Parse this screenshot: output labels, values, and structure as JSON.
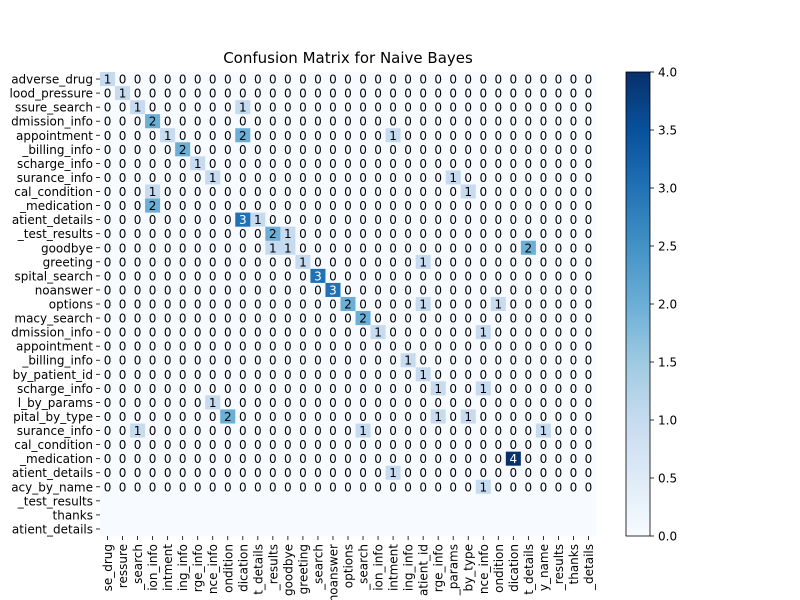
{
  "chart_data": {
    "type": "heatmap",
    "title": "Confusion Matrix for Naive Bayes",
    "xlabel": "",
    "ylabel": "",
    "y_labels": [
      "adverse_drug",
      "blood_pressure",
      "blood_pressure_search",
      "hospital_admission_info",
      "hospital_appointment",
      "hospital_billing_info",
      "hospital_discharge_info",
      "hospital_insurance_info",
      "medical_condition",
      "medication_medication",
      "patient_details",
      "lab_test_results",
      "goodbye",
      "greeting",
      "hospital_search",
      "noanswer",
      "options",
      "pharmacy_search",
      "admission_info",
      "appointment",
      "billing_info",
      "hospital_by_patient_id",
      "discharge_info",
      "hospital_by_params",
      "hospital_by_type",
      "insurance_info",
      "medical_condition",
      "medication_medication",
      "patient_details",
      "pharmacy_by_name",
      "lab_test_results",
      "thanks",
      "patient_details"
    ],
    "x_labels": [
      "adverse_drug",
      "blood_pressure",
      "blood_pressure_search",
      "admission_info",
      "appointment",
      "billing_info",
      "discharge_info",
      "insurance_info",
      "medical_condition",
      "medication",
      "patient_details",
      "lab_test_results",
      "goodbye",
      "greeting",
      "hospital_search",
      "noanswer",
      "options",
      "pharmacy_search",
      "admission_info",
      "appointment",
      "billing_info",
      "patient_id",
      "discharge_info",
      "by_params",
      "by_type",
      "insurance_info",
      "condition",
      "medication",
      "patient_details",
      "pharmacy_by_name",
      "test_results",
      "thanks",
      "patient_details"
    ],
    "y_label_display": [
      "adverse_drug",
      "lood_pressure",
      "ssure_search",
      "dmission_info",
      "appointment",
      "_billing_info",
      "scharge_info",
      "surance_info",
      "cal_condition",
      "_medication",
      "atient_details",
      "_test_results",
      "goodbye",
      "greeting",
      "spital_search",
      "noanswer",
      "options",
      "macy_search",
      "dmission_info",
      "appointment",
      "_billing_info",
      "by_patient_id",
      "scharge_info",
      "l_by_params",
      "pital_by_type",
      "surance_info",
      "cal_condition",
      "_medication",
      "atient_details",
      "acy_by_name",
      "_test_results",
      "thanks",
      "atient_details"
    ],
    "x_label_display": [
      "se_drug",
      "ressure",
      "_search",
      "ion_info",
      "intment",
      "ing_info",
      "rge_info",
      "nce_info",
      "ondition",
      "dication",
      "t_details",
      "_results",
      "goodbye",
      "greeting",
      "_search",
      "noanswer",
      "options",
      "_search",
      "ion_info",
      "intment",
      "ing_info",
      "atient_id",
      "rge_info",
      "_params",
      "by_type",
      "nce_info",
      "ondition",
      "dication",
      "t_details",
      "y_name",
      "_results",
      "thanks",
      "_details"
    ],
    "annotated_rows": 30,
    "matrix": [
      [
        1,
        0,
        0,
        0,
        0,
        0,
        0,
        0,
        0,
        0,
        0,
        0,
        0,
        0,
        0,
        0,
        0,
        0,
        0,
        0,
        0,
        0,
        0,
        0,
        0,
        0,
        0,
        0,
        0,
        0,
        0,
        0,
        0
      ],
      [
        0,
        1,
        0,
        0,
        0,
        0,
        0,
        0,
        0,
        0,
        0,
        0,
        0,
        0,
        0,
        0,
        0,
        0,
        0,
        0,
        0,
        0,
        0,
        0,
        0,
        0,
        0,
        0,
        0,
        0,
        0,
        0,
        0
      ],
      [
        0,
        0,
        1,
        0,
        0,
        0,
        0,
        0,
        0,
        1,
        0,
        0,
        0,
        0,
        0,
        0,
        0,
        0,
        0,
        0,
        0,
        0,
        0,
        0,
        0,
        0,
        0,
        0,
        0,
        0,
        0,
        0,
        0
      ],
      [
        0,
        0,
        0,
        2,
        0,
        0,
        0,
        0,
        0,
        0,
        0,
        0,
        0,
        0,
        0,
        0,
        0,
        0,
        0,
        0,
        0,
        0,
        0,
        0,
        0,
        0,
        0,
        0,
        0,
        0,
        0,
        0,
        0
      ],
      [
        0,
        0,
        0,
        0,
        1,
        0,
        0,
        0,
        0,
        2,
        0,
        0,
        0,
        0,
        0,
        0,
        0,
        0,
        0,
        1,
        0,
        0,
        0,
        0,
        0,
        0,
        0,
        0,
        0,
        0,
        0,
        0,
        0
      ],
      [
        0,
        0,
        0,
        0,
        0,
        2,
        0,
        0,
        0,
        0,
        0,
        0,
        0,
        0,
        0,
        0,
        0,
        0,
        0,
        0,
        0,
        0,
        0,
        0,
        0,
        0,
        0,
        0,
        0,
        0,
        0,
        0,
        0
      ],
      [
        0,
        0,
        0,
        0,
        0,
        0,
        1,
        0,
        0,
        0,
        0,
        0,
        0,
        0,
        0,
        0,
        0,
        0,
        0,
        0,
        0,
        0,
        0,
        0,
        0,
        0,
        0,
        0,
        0,
        0,
        0,
        0,
        0
      ],
      [
        0,
        0,
        0,
        0,
        0,
        0,
        0,
        1,
        0,
        0,
        0,
        0,
        0,
        0,
        0,
        0,
        0,
        0,
        0,
        0,
        0,
        0,
        0,
        1,
        0,
        0,
        0,
        0,
        0,
        0,
        0,
        0,
        0
      ],
      [
        0,
        0,
        0,
        1,
        0,
        0,
        0,
        0,
        0,
        0,
        0,
        0,
        0,
        0,
        0,
        0,
        0,
        0,
        0,
        0,
        0,
        0,
        0,
        0,
        1,
        0,
        0,
        0,
        0,
        0,
        0,
        0,
        0
      ],
      [
        0,
        0,
        0,
        2,
        0,
        0,
        0,
        0,
        0,
        0,
        0,
        0,
        0,
        0,
        0,
        0,
        0,
        0,
        0,
        0,
        0,
        0,
        0,
        0,
        0,
        0,
        0,
        0,
        0,
        0,
        0,
        0,
        0
      ],
      [
        0,
        0,
        0,
        0,
        0,
        0,
        0,
        0,
        0,
        3,
        1,
        0,
        0,
        0,
        0,
        0,
        0,
        0,
        0,
        0,
        0,
        0,
        0,
        0,
        0,
        0,
        0,
        0,
        0,
        0,
        0,
        0,
        0
      ],
      [
        0,
        0,
        0,
        0,
        0,
        0,
        0,
        0,
        0,
        0,
        0,
        2,
        1,
        0,
        0,
        0,
        0,
        0,
        0,
        0,
        0,
        0,
        0,
        0,
        0,
        0,
        0,
        0,
        0,
        0,
        0,
        0,
        0
      ],
      [
        0,
        0,
        0,
        0,
        0,
        0,
        0,
        0,
        0,
        0,
        0,
        1,
        1,
        0,
        0,
        0,
        0,
        0,
        0,
        0,
        0,
        0,
        0,
        0,
        0,
        0,
        0,
        0,
        2,
        0,
        0,
        0,
        0
      ],
      [
        0,
        0,
        0,
        0,
        0,
        0,
        0,
        0,
        0,
        0,
        0,
        0,
        0,
        1,
        0,
        0,
        0,
        0,
        0,
        0,
        0,
        1,
        0,
        0,
        0,
        0,
        0,
        0,
        0,
        0,
        0,
        0,
        0
      ],
      [
        0,
        0,
        0,
        0,
        0,
        0,
        0,
        0,
        0,
        0,
        0,
        0,
        0,
        0,
        3,
        0,
        0,
        0,
        0,
        0,
        0,
        0,
        0,
        0,
        0,
        0,
        0,
        0,
        0,
        0,
        0,
        0,
        0
      ],
      [
        0,
        0,
        0,
        0,
        0,
        0,
        0,
        0,
        0,
        0,
        0,
        0,
        0,
        0,
        0,
        3,
        0,
        0,
        0,
        0,
        0,
        0,
        0,
        0,
        0,
        0,
        0,
        0,
        0,
        0,
        0,
        0,
        0
      ],
      [
        0,
        0,
        0,
        0,
        0,
        0,
        0,
        0,
        0,
        0,
        0,
        0,
        0,
        0,
        0,
        0,
        2,
        0,
        0,
        0,
        0,
        1,
        0,
        0,
        0,
        0,
        1,
        0,
        0,
        0,
        0,
        0,
        0
      ],
      [
        0,
        0,
        0,
        0,
        0,
        0,
        0,
        0,
        0,
        0,
        0,
        0,
        0,
        0,
        0,
        0,
        0,
        2,
        0,
        0,
        0,
        0,
        0,
        0,
        0,
        0,
        0,
        0,
        0,
        0,
        0,
        0,
        0
      ],
      [
        0,
        0,
        0,
        0,
        0,
        0,
        0,
        0,
        0,
        0,
        0,
        0,
        0,
        0,
        0,
        0,
        0,
        0,
        1,
        0,
        0,
        0,
        0,
        0,
        0,
        1,
        0,
        0,
        0,
        0,
        0,
        0,
        0
      ],
      [
        0,
        0,
        0,
        0,
        0,
        0,
        0,
        0,
        0,
        0,
        0,
        0,
        0,
        0,
        0,
        0,
        0,
        0,
        0,
        0,
        0,
        0,
        0,
        0,
        0,
        0,
        0,
        0,
        0,
        0,
        0,
        0,
        0
      ],
      [
        0,
        0,
        0,
        0,
        0,
        0,
        0,
        0,
        0,
        0,
        0,
        0,
        0,
        0,
        0,
        0,
        0,
        0,
        0,
        0,
        1,
        0,
        0,
        0,
        0,
        0,
        0,
        0,
        0,
        0,
        0,
        0,
        0
      ],
      [
        0,
        0,
        0,
        0,
        0,
        0,
        0,
        0,
        0,
        0,
        0,
        0,
        0,
        0,
        0,
        0,
        0,
        0,
        0,
        0,
        0,
        1,
        0,
        0,
        0,
        0,
        0,
        0,
        0,
        0,
        0,
        0,
        0
      ],
      [
        0,
        0,
        0,
        0,
        0,
        0,
        0,
        0,
        0,
        0,
        0,
        0,
        0,
        0,
        0,
        0,
        0,
        0,
        0,
        0,
        0,
        0,
        1,
        0,
        0,
        1,
        0,
        0,
        0,
        0,
        0,
        0,
        0
      ],
      [
        0,
        0,
        0,
        0,
        0,
        0,
        0,
        1,
        0,
        0,
        0,
        0,
        0,
        0,
        0,
        0,
        0,
        0,
        0,
        0,
        0,
        0,
        0,
        0,
        0,
        0,
        0,
        0,
        0,
        0,
        0,
        0,
        0
      ],
      [
        0,
        0,
        0,
        0,
        0,
        0,
        0,
        0,
        2,
        0,
        0,
        0,
        0,
        0,
        0,
        0,
        0,
        0,
        0,
        0,
        0,
        0,
        1,
        0,
        1,
        0,
        0,
        0,
        0,
        0,
        0,
        0,
        0
      ],
      [
        0,
        0,
        1,
        0,
        0,
        0,
        0,
        0,
        0,
        0,
        0,
        0,
        0,
        0,
        0,
        0,
        0,
        1,
        0,
        0,
        0,
        0,
        0,
        0,
        0,
        0,
        0,
        0,
        0,
        1,
        0,
        0,
        0
      ],
      [
        0,
        0,
        0,
        0,
        0,
        0,
        0,
        0,
        0,
        0,
        0,
        0,
        0,
        0,
        0,
        0,
        0,
        0,
        0,
        0,
        0,
        0,
        0,
        0,
        0,
        0,
        0,
        0,
        0,
        0,
        0,
        0,
        0
      ],
      [
        0,
        0,
        0,
        0,
        0,
        0,
        0,
        0,
        0,
        0,
        0,
        0,
        0,
        0,
        0,
        0,
        0,
        0,
        0,
        0,
        0,
        0,
        0,
        0,
        0,
        0,
        0,
        4,
        0,
        0,
        0,
        0,
        0
      ],
      [
        0,
        0,
        0,
        0,
        0,
        0,
        0,
        0,
        0,
        0,
        0,
        0,
        0,
        0,
        0,
        0,
        0,
        0,
        0,
        1,
        0,
        0,
        0,
        0,
        0,
        0,
        0,
        0,
        0,
        0,
        0,
        0,
        0
      ],
      [
        0,
        0,
        0,
        0,
        0,
        0,
        0,
        0,
        0,
        0,
        0,
        0,
        0,
        0,
        0,
        0,
        0,
        0,
        0,
        0,
        0,
        0,
        0,
        0,
        0,
        1,
        0,
        0,
        0,
        0,
        0,
        0,
        0
      ],
      [
        0,
        0,
        0,
        0,
        0,
        0,
        0,
        0,
        0,
        0,
        0,
        0,
        0,
        0,
        0,
        0,
        0,
        0,
        0,
        0,
        0,
        0,
        0,
        0,
        0,
        0,
        0,
        0,
        0,
        0,
        0,
        0,
        0
      ],
      [
        0,
        0,
        0,
        0,
        0,
        0,
        0,
        0,
        0,
        0,
        0,
        0,
        0,
        0,
        0,
        0,
        0,
        0,
        0,
        0,
        0,
        0,
        0,
        0,
        0,
        0,
        0,
        0,
        0,
        0,
        0,
        0,
        0
      ],
      [
        0,
        0,
        0,
        0,
        0,
        0,
        0,
        0,
        0,
        0,
        0,
        0,
        0,
        0,
        0,
        0,
        0,
        0,
        0,
        0,
        0,
        0,
        0,
        0,
        0,
        0,
        0,
        0,
        0,
        0,
        0,
        0,
        0
      ]
    ],
    "vmin": 0,
    "vmax": 4,
    "colorbar_ticks": [
      "0.0",
      "0.5",
      "1.0",
      "1.5",
      "2.0",
      "2.5",
      "3.0",
      "3.5",
      "4.0"
    ],
    "colormap": "Blues",
    "color_low": "#f7fbff",
    "color_high": "#08306b",
    "grid": false
  }
}
